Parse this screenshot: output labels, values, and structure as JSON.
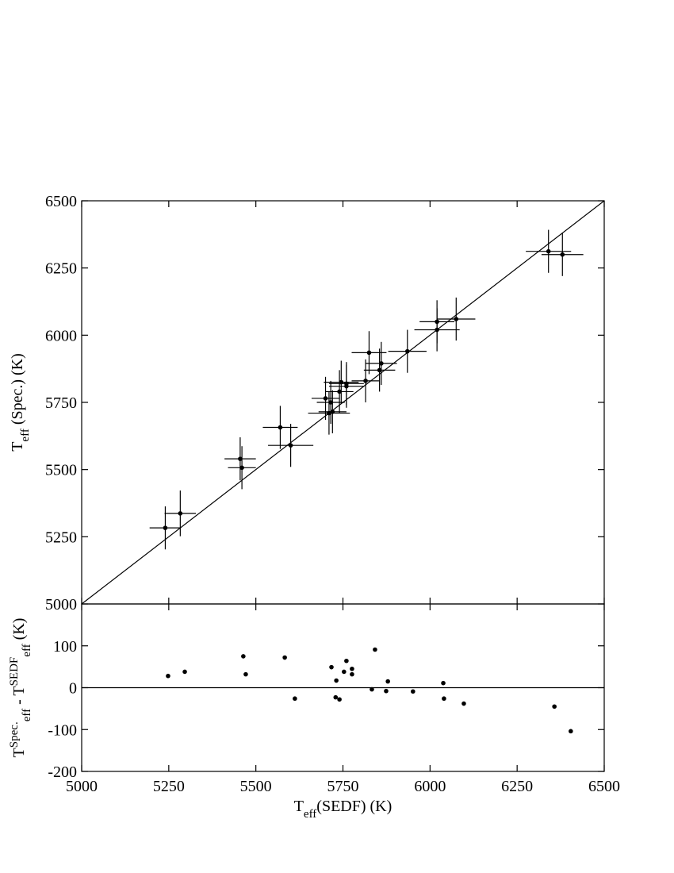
{
  "chart_data": [
    {
      "type": "scatter",
      "y_label": {
        "main": "T",
        "sub": "eff",
        "rest": " (Spec.) (K)"
      },
      "xlim": [
        5000,
        6500
      ],
      "xticks": [
        5000,
        5250,
        5500,
        5750,
        6000,
        6250,
        6500
      ],
      "ylim": [
        5000,
        6500
      ],
      "yticks": [
        5000,
        5250,
        5500,
        5750,
        6000,
        6250,
        6500
      ],
      "identity_line": true,
      "series": [
        {
          "color": "#000000",
          "x": [
            5240,
            5283,
            5455,
            5460,
            5570,
            5600,
            5700,
            5710,
            5715,
            5720,
            5740,
            5745,
            5760,
            5760,
            5815,
            5825,
            5855,
            5860,
            5935,
            6020,
            6020,
            6075,
            6340,
            6380
          ],
          "xerr": [
            45,
            45,
            45,
            40,
            50,
            65,
            40,
            60,
            40,
            40,
            40,
            50,
            50,
            50,
            40,
            50,
            45,
            45,
            55,
            65,
            50,
            55,
            65,
            60
          ],
          "y": [
            5283,
            5337,
            5540,
            5507,
            5657,
            5590,
            5765,
            5710,
            5750,
            5715,
            5790,
            5825,
            5810,
            5820,
            5830,
            5935,
            5870,
            5895,
            5940,
            6020,
            6050,
            6060,
            6312,
            6300
          ],
          "yerr": [
            80,
            85,
            80,
            80,
            80,
            80,
            80,
            80,
            80,
            80,
            80,
            80,
            80,
            80,
            80,
            80,
            80,
            80,
            80,
            80,
            80,
            80,
            80,
            80
          ]
        }
      ]
    },
    {
      "type": "scatter",
      "x_label": {
        "main": "T",
        "sub": "eff",
        "rest": "(SEDF) (K)"
      },
      "y_label": {
        "main": "T",
        "sup": "Spec.",
        "sub": "eff",
        "mid": " - T",
        "sup2": "SEDF",
        "sub2": "eff",
        "rest": " (K)"
      },
      "xlim": [
        5000,
        6500
      ],
      "xticks": [
        5000,
        5250,
        5500,
        5750,
        6000,
        6250,
        6500
      ],
      "ylim": [
        -200,
        200
      ],
      "yticks": [
        -200,
        -100,
        0,
        100
      ],
      "hline": 0,
      "series": [
        {
          "color": "#000000",
          "x": [
            5248,
            5296,
            5464,
            5471,
            5583,
            5612,
            5717,
            5729,
            5731,
            5740,
            5753,
            5760,
            5776,
            5776,
            5833,
            5842,
            5874,
            5879,
            5951,
            6038,
            6040,
            6097,
            6357,
            6404
          ],
          "y": [
            28,
            38,
            75,
            32,
            72,
            -26,
            49,
            -23,
            17,
            -28,
            38,
            64,
            45,
            32,
            -4,
            91,
            -8,
            15,
            -9,
            11,
            -26,
            -38,
            -45,
            -104
          ]
        }
      ]
    }
  ]
}
